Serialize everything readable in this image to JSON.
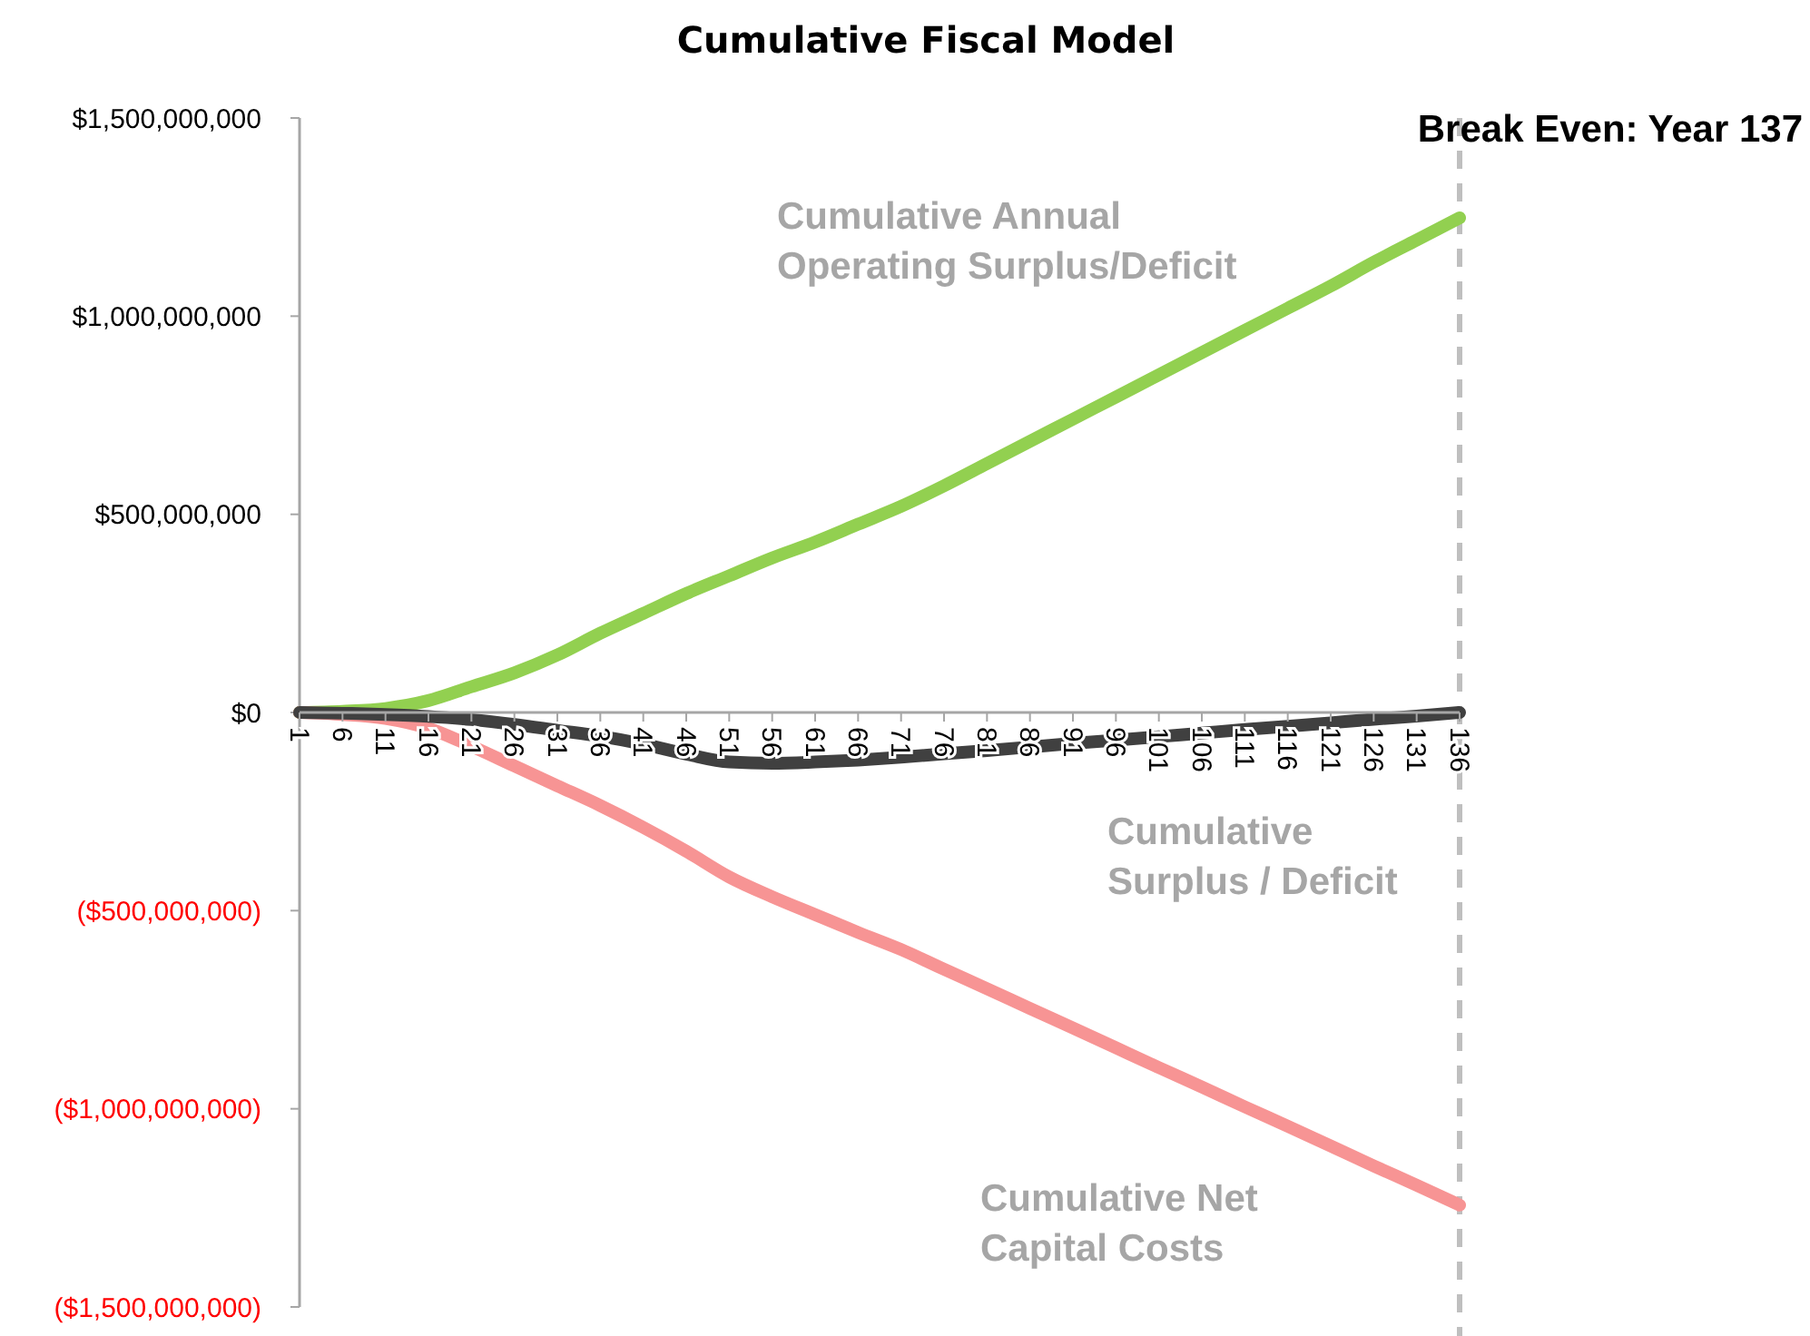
{
  "chart_data": {
    "type": "line",
    "title": "Cumulative Fiscal Model",
    "x": [
      1,
      6,
      11,
      16,
      21,
      26,
      31,
      36,
      41,
      46,
      51,
      56,
      61,
      66,
      71,
      76,
      81,
      86,
      91,
      96,
      101,
      106,
      111,
      116,
      121,
      126,
      131,
      136
    ],
    "xlim": [
      1,
      136
    ],
    "xticks": [
      1,
      6,
      11,
      16,
      21,
      26,
      31,
      36,
      41,
      46,
      51,
      56,
      61,
      66,
      71,
      76,
      81,
      86,
      91,
      96,
      101,
      106,
      111,
      116,
      121,
      126,
      131,
      136
    ],
    "ylim": [
      -1500000000,
      1500000000
    ],
    "yticks": [
      {
        "value": -1500000000,
        "label": "($1,500,000,000)"
      },
      {
        "value": -1000000000,
        "label": "($1,000,000,000)"
      },
      {
        "value": -500000000,
        "label": "($500,000,000)"
      },
      {
        "value": 0,
        "label": "$0"
      },
      {
        "value": 500000000,
        "label": "$500,000,000"
      },
      {
        "value": 1000000000,
        "label": "$1,000,000,000"
      },
      {
        "value": 1500000000,
        "label": "$1,500,000,000"
      }
    ],
    "series": [
      {
        "name": "Cumulative Annual Operating Surplus/Deficit",
        "color": "#92d050",
        "values": [
          0,
          3000000,
          10000000,
          30000000,
          65000000,
          100000000,
          145000000,
          200000000,
          250000000,
          300000000,
          345000000,
          390000000,
          430000000,
          475000000,
          520000000,
          572000000,
          628000000,
          684000000,
          740000000,
          796000000,
          852000000,
          908000000,
          964000000,
          1020000000,
          1076000000,
          1136000000,
          1192000000,
          1248000000
        ]
      },
      {
        "name": "Cumulative Net Capital Costs",
        "color": "#f79494",
        "values": [
          0,
          -5000000,
          -15000000,
          -40000000,
          -85000000,
          -135000000,
          -185000000,
          -235000000,
          -290000000,
          -350000000,
          -415000000,
          -465000000,
          -510000000,
          -555000000,
          -598000000,
          -648000000,
          -697000000,
          -747000000,
          -796000000,
          -846000000,
          -896000000,
          -945000000,
          -995000000,
          -1044000000,
          -1094000000,
          -1144000000,
          -1193000000,
          -1243000000
        ]
      },
      {
        "name": "Cumulative Surplus / Deficit",
        "color": "#404040",
        "values": [
          0,
          -2000000,
          -5000000,
          -10000000,
          -18000000,
          -30000000,
          -45000000,
          -60000000,
          -80000000,
          -105000000,
          -125000000,
          -128000000,
          -125000000,
          -120000000,
          -113000000,
          -104000000,
          -96000000,
          -87000000,
          -78000000,
          -70000000,
          -61000000,
          -52000000,
          -43000000,
          -35000000,
          -26000000,
          -17000000,
          -9000000,
          0
        ]
      }
    ],
    "ref_lines": [
      {
        "axis": "x",
        "value": 136,
        "label": "Break Even: Year 137",
        "color": "#bfbfbf",
        "line_style": "dashed"
      }
    ],
    "grid": false,
    "line_style": "solid"
  }
}
